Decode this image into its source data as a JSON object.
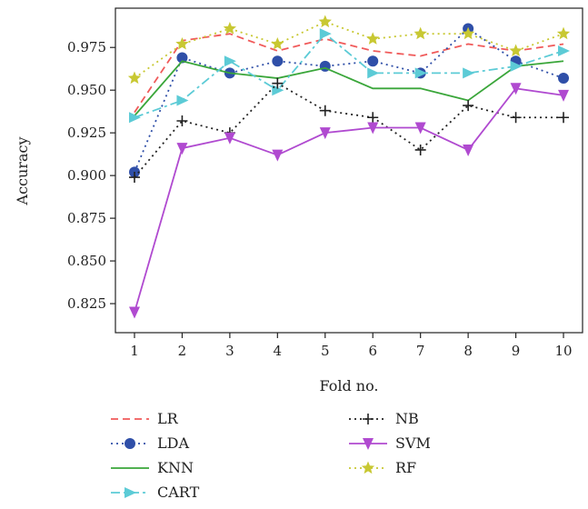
{
  "chart_data": {
    "type": "line",
    "title": "",
    "xlabel": "Fold no.",
    "ylabel": "Accuracy",
    "x": [
      1,
      2,
      3,
      4,
      5,
      6,
      7,
      8,
      9,
      10
    ],
    "xlim": [
      0.6,
      10.4
    ],
    "ylim": [
      0.808,
      0.998
    ],
    "yticks": [
      0.825,
      0.85,
      0.875,
      0.9,
      0.925,
      0.95,
      0.975
    ],
    "ytick_labels": [
      "0.825",
      "0.850",
      "0.875",
      "0.900",
      "0.925",
      "0.950",
      "0.975"
    ],
    "xtick_labels": [
      "1",
      "2",
      "3",
      "4",
      "5",
      "6",
      "7",
      "8",
      "9",
      "10"
    ],
    "grid": false,
    "legend_position": "bottom",
    "series": [
      {
        "name": "LR",
        "color": "#f05a5a",
        "dash": "8,5",
        "marker": "none",
        "values": [
          0.937,
          0.979,
          0.983,
          0.973,
          0.98,
          0.973,
          0.97,
          0.977,
          0.973,
          0.977
        ]
      },
      {
        "name": "LDA",
        "color": "#2f4fa8",
        "dash": "2,4",
        "marker": "circle",
        "values": [
          0.902,
          0.969,
          0.96,
          0.967,
          0.964,
          0.967,
          0.96,
          0.986,
          0.967,
          0.957
        ]
      },
      {
        "name": "KNN",
        "color": "#3aa63a",
        "dash": "",
        "marker": "none",
        "values": [
          0.935,
          0.967,
          0.96,
          0.957,
          0.963,
          0.951,
          0.951,
          0.944,
          0.964,
          0.967
        ]
      },
      {
        "name": "CART",
        "color": "#5ccbd6",
        "dash": "10,4,3,4",
        "marker": "triangle-right",
        "values": [
          0.934,
          0.944,
          0.967,
          0.95,
          0.983,
          0.96,
          0.96,
          0.96,
          0.964,
          0.973
        ]
      },
      {
        "name": "NB",
        "color": "#222222",
        "dash": "2,4",
        "marker": "plus",
        "values": [
          0.899,
          0.932,
          0.925,
          0.954,
          0.938,
          0.934,
          0.915,
          0.941,
          0.934,
          0.934
        ]
      },
      {
        "name": "SVM",
        "color": "#b04ad0",
        "dash": "",
        "marker": "triangle-down",
        "values": [
          0.82,
          0.916,
          0.922,
          0.912,
          0.925,
          0.928,
          0.928,
          0.915,
          0.951,
          0.947
        ]
      },
      {
        "name": "RF",
        "color": "#c8c832",
        "dash": "2,4",
        "marker": "star",
        "values": [
          0.957,
          0.977,
          0.986,
          0.977,
          0.99,
          0.98,
          0.983,
          0.983,
          0.973,
          0.983
        ]
      }
    ]
  }
}
